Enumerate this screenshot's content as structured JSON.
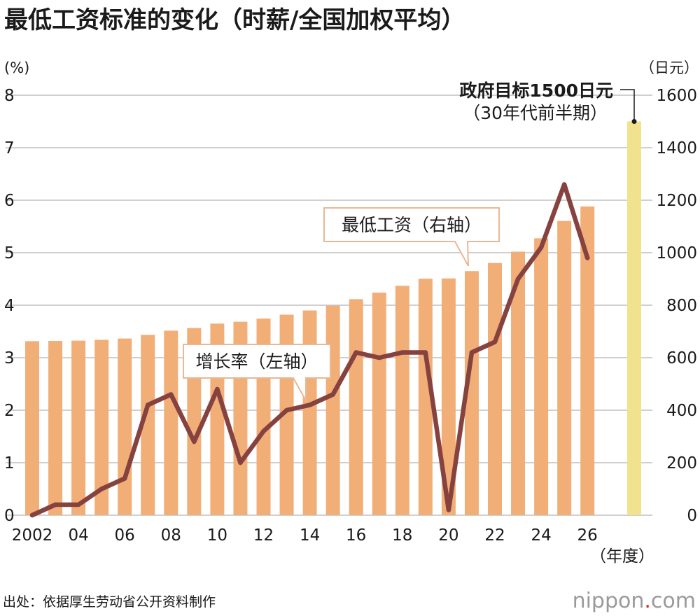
{
  "title": "最低工资标准的变化（时薪/全国加权平均）",
  "source": "出处：依据厚生劳动省公开资料制作",
  "logo": {
    "name": "nippon",
    "dot": ".",
    "suffix": "com"
  },
  "chart_data": {
    "type": "bar+line",
    "x": [
      "2002",
      "2003",
      "2004",
      "2005",
      "2006",
      "2007",
      "2008",
      "2009",
      "2010",
      "2011",
      "2012",
      "2013",
      "2014",
      "2015",
      "2016",
      "2017",
      "2018",
      "2019",
      "2020",
      "2021",
      "2022",
      "2023",
      "2024",
      "2025",
      "2026"
    ],
    "x_tick_labels": [
      "2002",
      "04",
      "06",
      "08",
      "10",
      "12",
      "14",
      "16",
      "18",
      "20",
      "22",
      "24",
      "26"
    ],
    "x_unit": "（年度）",
    "left_axis": {
      "unit": "(%)",
      "range": [
        0,
        8
      ],
      "ticks": [
        "0",
        "1",
        "2",
        "3",
        "4",
        "5",
        "6",
        "7",
        "8"
      ]
    },
    "right_axis": {
      "unit": "（日元）",
      "range": [
        0,
        1600
      ],
      "ticks": [
        "0",
        "200",
        "400",
        "600",
        "800",
        "1000",
        "1200",
        "1400",
        "1600"
      ]
    },
    "grid": true,
    "series": [
      {
        "name": "最低工资（右轴）",
        "axis": "right",
        "type": "bar",
        "color": "#f2ae77",
        "values": [
          663,
          664,
          665,
          668,
          673,
          687,
          703,
          713,
          730,
          737,
          749,
          764,
          780,
          798,
          823,
          848,
          874,
          901,
          902,
          930,
          961,
          1004,
          1055,
          1121,
          1176
        ]
      },
      {
        "name": "增长率（左轴）",
        "axis": "left",
        "type": "line",
        "color": "#86423f",
        "values": [
          0.0,
          0.2,
          0.2,
          0.5,
          0.7,
          2.1,
          2.3,
          1.4,
          2.4,
          1.0,
          1.6,
          2.0,
          2.1,
          2.3,
          3.1,
          3.0,
          3.1,
          3.1,
          0.1,
          3.1,
          3.3,
          4.5,
          5.1,
          6.3,
          4.9
        ]
      }
    ],
    "target": {
      "label_line1": "政府目标1500日元",
      "label_line2": "（30年代前半期）",
      "value": 1500,
      "color": "#f1e28e"
    }
  }
}
